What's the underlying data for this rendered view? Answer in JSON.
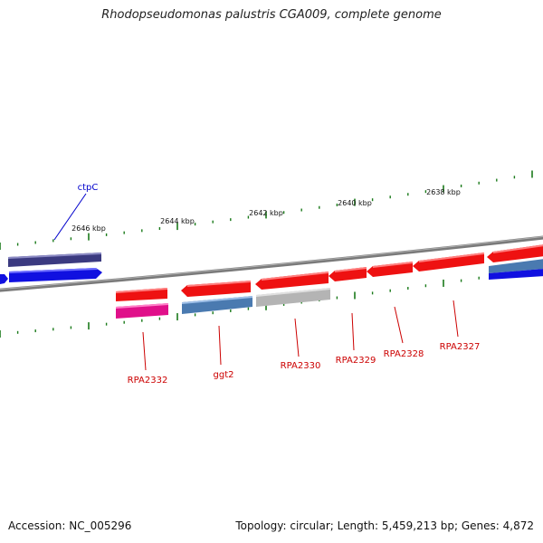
{
  "title": "Rhodopseudomonas palustris CGA009, complete genome",
  "footer": {
    "accession": "Accession: NC_005296",
    "summary": "Topology: circular; Length: 5,459,213 bp; Genes: 4,872"
  },
  "ruler": [
    "2646 kbp",
    "2644 kbp",
    "2642 kbp",
    "2640 kbp",
    "2638 kbp"
  ],
  "genes": {
    "ctpC": "ctpC",
    "rpa2332": "RPA2332",
    "ggt2": "ggt2",
    "rpa2330": "RPA2330",
    "rpa2329": "RPA2329",
    "rpa2328": "RPA2328",
    "rpa2327": "RPA2327"
  },
  "colors": {
    "backbone": "#808080",
    "tick": "#1a7a1a",
    "gene_red": "#ee1111",
    "gene_navy": "#3b3a80",
    "gene_blue": "#1010e0",
    "gene_steel": "#4a7ab0",
    "gene_magenta": "#e0108a",
    "gene_grey": "#b4b4b4",
    "label_red": "#cc0000",
    "label_blue": "#0000cc"
  }
}
